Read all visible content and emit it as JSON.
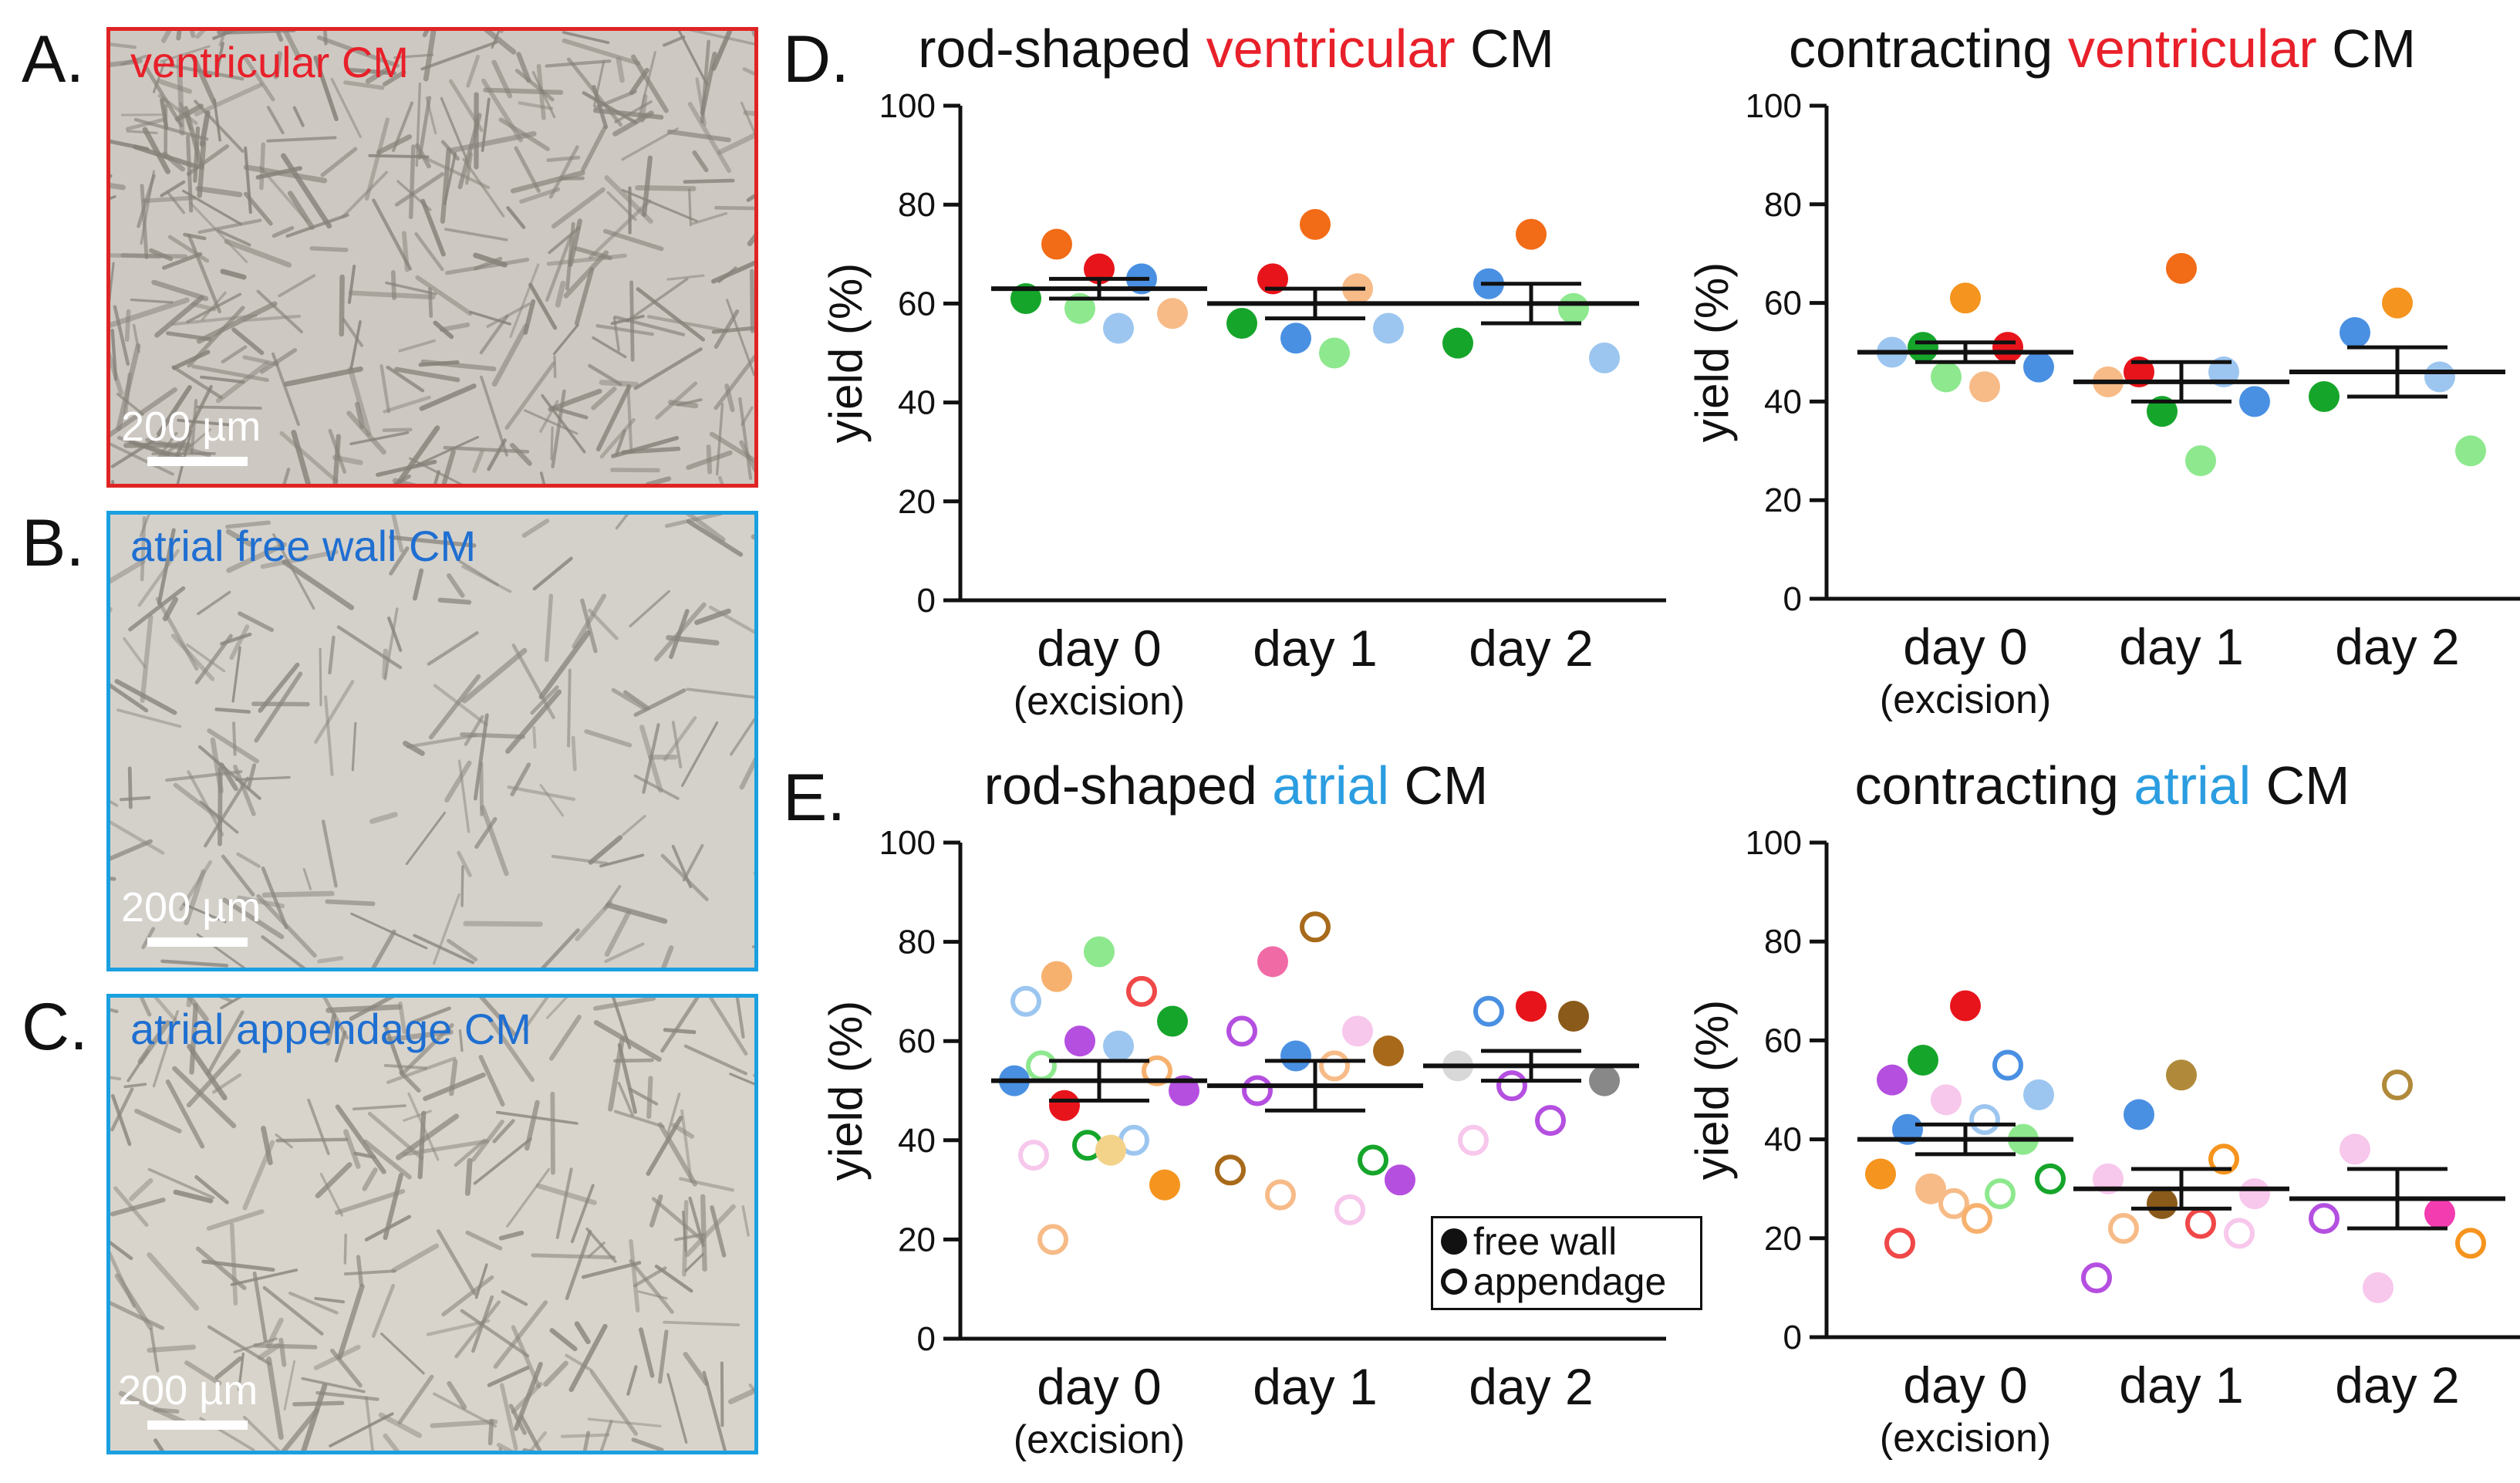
{
  "panels": {
    "a": {
      "letter": "A.",
      "label": "ventricular CM",
      "label_color": "#e8202a",
      "border_color": "#e02424",
      "scale": "200 µm"
    },
    "b": {
      "letter": "B.",
      "label": "atrial free wall CM",
      "label_color": "#1f6fd1",
      "border_color": "#1aa0e0",
      "scale": "200 µm"
    },
    "c": {
      "letter": "C.",
      "label": "atrial appendage CM",
      "label_color": "#1f6fd1",
      "border_color": "#1aa0e0",
      "scale": "200 µm"
    },
    "d": {
      "letter": "D."
    },
    "e": {
      "letter": "E."
    }
  },
  "legend": {
    "filled_label": "free wall",
    "open_label": "appendage"
  },
  "chart_data": [
    {
      "id": "d-left",
      "type": "scatter",
      "title_parts": [
        {
          "text": "rod-shaped ",
          "color": "#111111"
        },
        {
          "text": "ventricular",
          "color": "#e8202a"
        },
        {
          "text": " CM",
          "color": "#111111"
        }
      ],
      "ylabel": "yield (%)",
      "ylim": [
        0,
        100
      ],
      "yticks": [
        0,
        20,
        40,
        60,
        80,
        100
      ],
      "categories": [
        "day 0",
        "day 1",
        "day 2"
      ],
      "sublabels": [
        "(excision)",
        "",
        ""
      ],
      "mean": [
        63,
        60,
        60
      ],
      "sem": [
        2,
        3,
        4
      ],
      "points": [
        {
          "g": 0,
          "y": 67,
          "c": "#e8141b",
          "f": true
        },
        {
          "g": 0,
          "y": 72,
          "c": "#f26b16",
          "f": true
        },
        {
          "g": 0,
          "y": 65,
          "c": "#4a90e2",
          "f": true
        },
        {
          "g": 0,
          "y": 61,
          "c": "#16a52b",
          "f": true
        },
        {
          "g": 0,
          "y": 58,
          "c": "#f7bb88",
          "f": true
        },
        {
          "g": 0,
          "y": 59,
          "c": "#8ee88e",
          "f": true
        },
        {
          "g": 0,
          "y": 55,
          "c": "#9cc6f0",
          "f": true
        },
        {
          "g": 1,
          "y": 76,
          "c": "#f26b16",
          "f": true
        },
        {
          "g": 1,
          "y": 65,
          "c": "#e8141b",
          "f": true
        },
        {
          "g": 1,
          "y": 63,
          "c": "#f7bb88",
          "f": true
        },
        {
          "g": 1,
          "y": 56,
          "c": "#16a52b",
          "f": true
        },
        {
          "g": 1,
          "y": 55,
          "c": "#9cc6f0",
          "f": true
        },
        {
          "g": 1,
          "y": 53,
          "c": "#4a90e2",
          "f": true
        },
        {
          "g": 1,
          "y": 50,
          "c": "#8ee88e",
          "f": true
        },
        {
          "g": 2,
          "y": 74,
          "c": "#f26b16",
          "f": true
        },
        {
          "g": 2,
          "y": 64,
          "c": "#4a90e2",
          "f": true
        },
        {
          "g": 2,
          "y": 59,
          "c": "#8ee88e",
          "f": true
        },
        {
          "g": 2,
          "y": 52,
          "c": "#16a52b",
          "f": true
        },
        {
          "g": 2,
          "y": 49,
          "c": "#9cc6f0",
          "f": true
        }
      ]
    },
    {
      "id": "d-right",
      "type": "scatter",
      "title_parts": [
        {
          "text": "contracting ",
          "color": "#111111"
        },
        {
          "text": "ventricular",
          "color": "#e8202a"
        },
        {
          "text": " CM",
          "color": "#111111"
        }
      ],
      "ylabel": "yield (%)",
      "ylim": [
        0,
        100
      ],
      "yticks": [
        0,
        20,
        40,
        60,
        80,
        100
      ],
      "categories": [
        "day 0",
        "day 1",
        "day 2"
      ],
      "sublabels": [
        "(excision)",
        "",
        ""
      ],
      "mean": [
        50,
        44,
        46
      ],
      "sem": [
        2,
        4,
        5
      ],
      "points": [
        {
          "g": 0,
          "y": 61,
          "c": "#f5941e",
          "f": true
        },
        {
          "g": 0,
          "y": 51,
          "c": "#16a52b",
          "f": true
        },
        {
          "g": 0,
          "y": 51,
          "c": "#e8141b",
          "f": true
        },
        {
          "g": 0,
          "y": 50,
          "c": "#9cc6f0",
          "f": true
        },
        {
          "g": 0,
          "y": 47,
          "c": "#4a90e2",
          "f": true
        },
        {
          "g": 0,
          "y": 45,
          "c": "#8ee88e",
          "f": true
        },
        {
          "g": 0,
          "y": 43,
          "c": "#f7bb88",
          "f": true
        },
        {
          "g": 1,
          "y": 67,
          "c": "#f26b16",
          "f": true
        },
        {
          "g": 1,
          "y": 46,
          "c": "#e8141b",
          "f": true
        },
        {
          "g": 1,
          "y": 46,
          "c": "#9cc6f0",
          "f": true
        },
        {
          "g": 1,
          "y": 44,
          "c": "#f7bb88",
          "f": true
        },
        {
          "g": 1,
          "y": 40,
          "c": "#4a90e2",
          "f": true
        },
        {
          "g": 1,
          "y": 38,
          "c": "#16a52b",
          "f": true
        },
        {
          "g": 1,
          "y": 28,
          "c": "#8ee88e",
          "f": true
        },
        {
          "g": 2,
          "y": 60,
          "c": "#f5941e",
          "f": true
        },
        {
          "g": 2,
          "y": 54,
          "c": "#4a90e2",
          "f": true
        },
        {
          "g": 2,
          "y": 45,
          "c": "#9cc6f0",
          "f": true
        },
        {
          "g": 2,
          "y": 41,
          "c": "#16a52b",
          "f": true
        },
        {
          "g": 2,
          "y": 30,
          "c": "#8ee88e",
          "f": true
        }
      ]
    },
    {
      "id": "e-left",
      "type": "scatter",
      "title_parts": [
        {
          "text": "rod-shaped ",
          "color": "#111111"
        },
        {
          "text": "atrial",
          "color": "#2b9de0"
        },
        {
          "text": " CM",
          "color": "#111111"
        }
      ],
      "ylabel": "yield (%)",
      "ylim": [
        0,
        100
      ],
      "yticks": [
        0,
        20,
        40,
        60,
        80,
        100
      ],
      "categories": [
        "day 0",
        "day 1",
        "day 2"
      ],
      "sublabels": [
        "(excision)",
        "",
        ""
      ],
      "mean": [
        52,
        51,
        55
      ],
      "sem": [
        4,
        5,
        3
      ],
      "points": [
        {
          "g": 0,
          "y": 78,
          "c": "#8ee88e",
          "f": true
        },
        {
          "g": 0,
          "y": 73,
          "c": "#f7b16e",
          "f": true
        },
        {
          "g": 0,
          "y": 70,
          "c": "#f04848",
          "f": false
        },
        {
          "g": 0,
          "y": 68,
          "c": "#9cc6f0",
          "f": false
        },
        {
          "g": 0,
          "y": 64,
          "c": "#16a52b",
          "f": true
        },
        {
          "g": 0,
          "y": 60,
          "c": "#b44fe0",
          "f": true
        },
        {
          "g": 0,
          "y": 59,
          "c": "#9cc6f0",
          "f": true
        },
        {
          "g": 0,
          "y": 55,
          "c": "#8ee88e",
          "f": false
        },
        {
          "g": 0,
          "y": 54,
          "c": "#f7b16e",
          "f": false
        },
        {
          "g": 0,
          "y": 52,
          "c": "#4a90e2",
          "f": true
        },
        {
          "g": 0,
          "y": 50,
          "c": "#b44fe0",
          "f": true
        },
        {
          "g": 0,
          "y": 47,
          "c": "#e8141b",
          "f": true
        },
        {
          "g": 0,
          "y": 40,
          "c": "#9cc6f0",
          "f": false
        },
        {
          "g": 0,
          "y": 39,
          "c": "#16a52b",
          "f": false
        },
        {
          "g": 0,
          "y": 38,
          "c": "#f3d28a",
          "f": true
        },
        {
          "g": 0,
          "y": 37,
          "c": "#f7c7ec",
          "f": false
        },
        {
          "g": 0,
          "y": 31,
          "c": "#f5941e",
          "f": true
        },
        {
          "g": 0,
          "y": 20,
          "c": "#f7bb88",
          "f": false
        },
        {
          "g": 1,
          "y": 83,
          "c": "#a86a1a",
          "f": false
        },
        {
          "g": 1,
          "y": 76,
          "c": "#f06ba6",
          "f": true
        },
        {
          "g": 1,
          "y": 62,
          "c": "#f7c7ec",
          "f": true
        },
        {
          "g": 1,
          "y": 62,
          "c": "#b44fe0",
          "f": false
        },
        {
          "g": 1,
          "y": 58,
          "c": "#a86a1a",
          "f": true
        },
        {
          "g": 1,
          "y": 57,
          "c": "#4a90e2",
          "f": true
        },
        {
          "g": 1,
          "y": 55,
          "c": "#f7bb88",
          "f": false
        },
        {
          "g": 1,
          "y": 50,
          "c": "#b44fe0",
          "f": false
        },
        {
          "g": 1,
          "y": 36,
          "c": "#16a52b",
          "f": false
        },
        {
          "g": 1,
          "y": 34,
          "c": "#a86a1a",
          "f": false
        },
        {
          "g": 1,
          "y": 32,
          "c": "#b44fe0",
          "f": true
        },
        {
          "g": 1,
          "y": 29,
          "c": "#f7bb88",
          "f": false
        },
        {
          "g": 1,
          "y": 26,
          "c": "#f7c7ec",
          "f": false
        },
        {
          "g": 2,
          "y": 67,
          "c": "#e8141b",
          "f": true
        },
        {
          "g": 2,
          "y": 66,
          "c": "#4a90e2",
          "f": false
        },
        {
          "g": 2,
          "y": 65,
          "c": "#8a5a1a",
          "f": true
        },
        {
          "g": 2,
          "y": 55,
          "c": "#d8d8d8",
          "f": true
        },
        {
          "g": 2,
          "y": 52,
          "c": "#888888",
          "f": true
        },
        {
          "g": 2,
          "y": 51,
          "c": "#b44fe0",
          "f": false
        },
        {
          "g": 2,
          "y": 44,
          "c": "#b44fe0",
          "f": false
        },
        {
          "g": 2,
          "y": 40,
          "c": "#f7c7ec",
          "f": false
        }
      ]
    },
    {
      "id": "e-right",
      "type": "scatter",
      "title_parts": [
        {
          "text": "contracting ",
          "color": "#111111"
        },
        {
          "text": "atrial",
          "color": "#2b9de0"
        },
        {
          "text": " CM",
          "color": "#111111"
        }
      ],
      "ylabel": "yield (%)",
      "ylim": [
        0,
        100
      ],
      "yticks": [
        0,
        20,
        40,
        60,
        80,
        100
      ],
      "categories": [
        "day 0",
        "day 1",
        "day 2"
      ],
      "sublabels": [
        "(excision)",
        "",
        ""
      ],
      "mean": [
        40,
        30,
        28
      ],
      "sem": [
        3,
        4,
        6
      ],
      "points": [
        {
          "g": 0,
          "y": 67,
          "c": "#e8141b",
          "f": true
        },
        {
          "g": 0,
          "y": 56,
          "c": "#16a52b",
          "f": true
        },
        {
          "g": 0,
          "y": 55,
          "c": "#4a90e2",
          "f": false
        },
        {
          "g": 0,
          "y": 52,
          "c": "#b44fe0",
          "f": true
        },
        {
          "g": 0,
          "y": 49,
          "c": "#9cc6f0",
          "f": true
        },
        {
          "g": 0,
          "y": 48,
          "c": "#f7c7ec",
          "f": true
        },
        {
          "g": 0,
          "y": 44,
          "c": "#9cc6f0",
          "f": false
        },
        {
          "g": 0,
          "y": 42,
          "c": "#4a90e2",
          "f": true
        },
        {
          "g": 0,
          "y": 40,
          "c": "#8ee88e",
          "f": true
        },
        {
          "g": 0,
          "y": 33,
          "c": "#f5941e",
          "f": true
        },
        {
          "g": 0,
          "y": 32,
          "c": "#16a52b",
          "f": false
        },
        {
          "g": 0,
          "y": 30,
          "c": "#f7bb88",
          "f": true
        },
        {
          "g": 0,
          "y": 29,
          "c": "#8ee88e",
          "f": false
        },
        {
          "g": 0,
          "y": 27,
          "c": "#f7bb88",
          "f": false
        },
        {
          "g": 0,
          "y": 24,
          "c": "#f7b16e",
          "f": false
        },
        {
          "g": 0,
          "y": 19,
          "c": "#f04848",
          "f": false
        },
        {
          "g": 1,
          "y": 53,
          "c": "#b08a3a",
          "f": true
        },
        {
          "g": 1,
          "y": 45,
          "c": "#4a90e2",
          "f": true
        },
        {
          "g": 1,
          "y": 36,
          "c": "#f5941e",
          "f": false
        },
        {
          "g": 1,
          "y": 32,
          "c": "#f7c7ec",
          "f": true
        },
        {
          "g": 1,
          "y": 29,
          "c": "#f7c7ec",
          "f": true
        },
        {
          "g": 1,
          "y": 27,
          "c": "#8a5a1a",
          "f": true
        },
        {
          "g": 1,
          "y": 23,
          "c": "#f04848",
          "f": false
        },
        {
          "g": 1,
          "y": 22,
          "c": "#f7bb88",
          "f": false
        },
        {
          "g": 1,
          "y": 21,
          "c": "#f7c7ec",
          "f": false
        },
        {
          "g": 1,
          "y": 12,
          "c": "#b44fe0",
          "f": false
        },
        {
          "g": 2,
          "y": 51,
          "c": "#b08a3a",
          "f": false
        },
        {
          "g": 2,
          "y": 38,
          "c": "#f7c7ec",
          "f": true
        },
        {
          "g": 2,
          "y": 25,
          "c": "#f23cb0",
          "f": true
        },
        {
          "g": 2,
          "y": 24,
          "c": "#b44fe0",
          "f": false
        },
        {
          "g": 2,
          "y": 19,
          "c": "#f5941e",
          "f": false
        },
        {
          "g": 2,
          "y": 10,
          "c": "#f7c7ec",
          "f": true
        }
      ]
    }
  ]
}
